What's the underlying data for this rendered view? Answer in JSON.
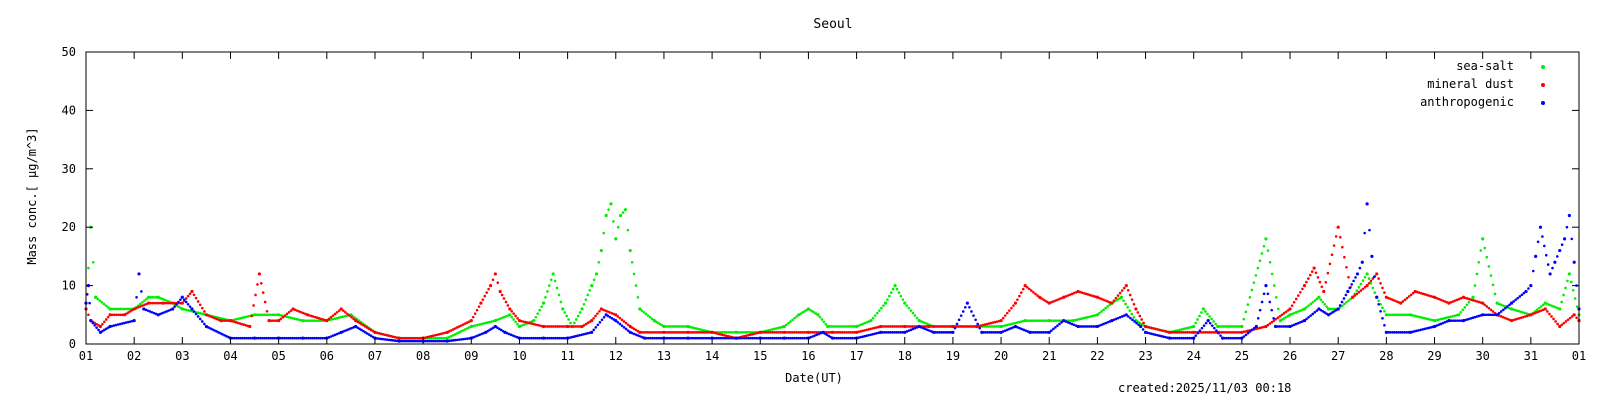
{
  "chart_data": {
    "type": "scatter",
    "title": "Seoul",
    "xlabel": "Date(UT)",
    "ylabel": "Mass conc.[ μg/m^3]",
    "footer": "created:2025/11/03 00:18",
    "xlim": [
      0,
      31
    ],
    "ylim": [
      0,
      50
    ],
    "yticks": [
      0,
      10,
      20,
      30,
      40,
      50
    ],
    "xtick_labels": [
      "01",
      "02",
      "03",
      "04",
      "05",
      "06",
      "07",
      "08",
      "09",
      "10",
      "11",
      "12",
      "13",
      "14",
      "15",
      "16",
      "17",
      "18",
      "19",
      "20",
      "21",
      "22",
      "23",
      "24",
      "25",
      "26",
      "27",
      "28",
      "29",
      "30",
      "31",
      "01"
    ],
    "grid": false,
    "legend_position": "top-right",
    "series": [
      {
        "name": "sea-salt",
        "color": "#00ee00",
        "points": [
          [
            0.0,
            6
          ],
          [
            0.1,
            20
          ],
          [
            0.2,
            8
          ],
          [
            0.5,
            6
          ],
          [
            1.0,
            6
          ],
          [
            1.3,
            8
          ],
          [
            1.5,
            8
          ],
          [
            1.8,
            7
          ],
          [
            2.0,
            6
          ],
          [
            2.5,
            5
          ],
          [
            3.0,
            4
          ],
          [
            3.5,
            5
          ],
          [
            4.0,
            5
          ],
          [
            4.5,
            4
          ],
          [
            5.0,
            4
          ],
          [
            5.5,
            5
          ],
          [
            6.0,
            2
          ],
          [
            6.5,
            1
          ],
          [
            7.0,
            1
          ],
          [
            7.5,
            1
          ],
          [
            8.0,
            3
          ],
          [
            8.5,
            4
          ],
          [
            8.8,
            5
          ],
          [
            9.0,
            3
          ],
          [
            9.3,
            4
          ],
          [
            9.5,
            7
          ],
          [
            9.7,
            12
          ],
          [
            9.9,
            6
          ],
          [
            10.1,
            3
          ],
          [
            10.3,
            6
          ],
          [
            10.5,
            10
          ],
          [
            10.6,
            12
          ],
          [
            10.7,
            16
          ],
          [
            10.8,
            22
          ],
          [
            10.9,
            24
          ],
          [
            11.0,
            18
          ],
          [
            11.1,
            22
          ],
          [
            11.2,
            23
          ],
          [
            11.3,
            16
          ],
          [
            11.5,
            6
          ],
          [
            11.8,
            4
          ],
          [
            12.0,
            3
          ],
          [
            12.5,
            3
          ],
          [
            13.0,
            2
          ],
          [
            13.5,
            2
          ],
          [
            14.0,
            2
          ],
          [
            14.5,
            3
          ],
          [
            14.8,
            5
          ],
          [
            15.0,
            6
          ],
          [
            15.2,
            5
          ],
          [
            15.4,
            3
          ],
          [
            16.0,
            3
          ],
          [
            16.3,
            4
          ],
          [
            16.6,
            7
          ],
          [
            16.8,
            10
          ],
          [
            17.0,
            7
          ],
          [
            17.3,
            4
          ],
          [
            17.6,
            3
          ],
          [
            18.0,
            3
          ],
          [
            18.5,
            3
          ],
          [
            19.0,
            3
          ],
          [
            19.5,
            4
          ],
          [
            20.0,
            4
          ],
          [
            20.5,
            4
          ],
          [
            21.0,
            5
          ],
          [
            21.3,
            7
          ],
          [
            21.5,
            8
          ],
          [
            21.8,
            4
          ],
          [
            22.0,
            3
          ],
          [
            22.5,
            2
          ],
          [
            23.0,
            3
          ],
          [
            23.2,
            6
          ],
          [
            23.5,
            3
          ],
          [
            24.0,
            3
          ],
          [
            24.5,
            18
          ],
          [
            24.8,
            4
          ],
          [
            25.0,
            5
          ],
          [
            25.3,
            6
          ],
          [
            25.6,
            8
          ],
          [
            25.8,
            6
          ],
          [
            26.0,
            6
          ],
          [
            26.3,
            8
          ],
          [
            26.6,
            12
          ],
          [
            26.8,
            8
          ],
          [
            27.0,
            5
          ],
          [
            27.5,
            5
          ],
          [
            28.0,
            4
          ],
          [
            28.5,
            5
          ],
          [
            28.8,
            8
          ],
          [
            29.0,
            18
          ],
          [
            29.3,
            7
          ],
          [
            29.6,
            6
          ],
          [
            30.0,
            5
          ],
          [
            30.3,
            7
          ],
          [
            30.6,
            6
          ],
          [
            30.8,
            12
          ],
          [
            31.0,
            5
          ]
        ]
      },
      {
        "name": "mineral dust",
        "color": "#ff0000",
        "points": [
          [
            0.0,
            6
          ],
          [
            0.1,
            4
          ],
          [
            0.3,
            3
          ],
          [
            0.5,
            5
          ],
          [
            0.8,
            5
          ],
          [
            1.0,
            6
          ],
          [
            1.3,
            7
          ],
          [
            1.6,
            7
          ],
          [
            2.0,
            7
          ],
          [
            2.2,
            9
          ],
          [
            2.5,
            5
          ],
          [
            2.8,
            4
          ],
          [
            3.0,
            4
          ],
          [
            3.4,
            3
          ],
          [
            3.6,
            12
          ],
          [
            3.8,
            4
          ],
          [
            4.0,
            4
          ],
          [
            4.3,
            6
          ],
          [
            4.6,
            5
          ],
          [
            5.0,
            4
          ],
          [
            5.3,
            6
          ],
          [
            5.6,
            4
          ],
          [
            6.0,
            2
          ],
          [
            6.5,
            1
          ],
          [
            7.0,
            1
          ],
          [
            7.5,
            2
          ],
          [
            8.0,
            4
          ],
          [
            8.2,
            7
          ],
          [
            8.4,
            10
          ],
          [
            8.5,
            12
          ],
          [
            8.6,
            9
          ],
          [
            8.8,
            6
          ],
          [
            9.0,
            4
          ],
          [
            9.5,
            3
          ],
          [
            10.0,
            3
          ],
          [
            10.3,
            3
          ],
          [
            10.5,
            4
          ],
          [
            10.7,
            6
          ],
          [
            11.0,
            5
          ],
          [
            11.3,
            3
          ],
          [
            11.5,
            2
          ],
          [
            12.0,
            2
          ],
          [
            12.5,
            2
          ],
          [
            13.0,
            2
          ],
          [
            13.5,
            1
          ],
          [
            14.0,
            2
          ],
          [
            14.5,
            2
          ],
          [
            15.0,
            2
          ],
          [
            15.5,
            2
          ],
          [
            16.0,
            2
          ],
          [
            16.5,
            3
          ],
          [
            17.0,
            3
          ],
          [
            17.5,
            3
          ],
          [
            18.0,
            3
          ],
          [
            18.5,
            3
          ],
          [
            19.0,
            4
          ],
          [
            19.3,
            7
          ],
          [
            19.5,
            10
          ],
          [
            19.8,
            8
          ],
          [
            20.0,
            7
          ],
          [
            20.3,
            8
          ],
          [
            20.6,
            9
          ],
          [
            21.0,
            8
          ],
          [
            21.3,
            7
          ],
          [
            21.6,
            10
          ],
          [
            21.8,
            6
          ],
          [
            22.0,
            3
          ],
          [
            22.5,
            2
          ],
          [
            23.0,
            2
          ],
          [
            23.5,
            2
          ],
          [
            24.0,
            2
          ],
          [
            24.5,
            3
          ],
          [
            25.0,
            6
          ],
          [
            25.3,
            10
          ],
          [
            25.5,
            13
          ],
          [
            25.7,
            9
          ],
          [
            26.0,
            20
          ],
          [
            26.3,
            8
          ],
          [
            26.6,
            10
          ],
          [
            26.8,
            12
          ],
          [
            27.0,
            8
          ],
          [
            27.3,
            7
          ],
          [
            27.6,
            9
          ],
          [
            28.0,
            8
          ],
          [
            28.3,
            7
          ],
          [
            28.6,
            8
          ],
          [
            29.0,
            7
          ],
          [
            29.3,
            5
          ],
          [
            29.6,
            4
          ],
          [
            30.0,
            5
          ],
          [
            30.3,
            6
          ],
          [
            30.6,
            3
          ],
          [
            30.9,
            5
          ],
          [
            31.0,
            4
          ]
        ]
      },
      {
        "name": "anthropogenic",
        "color": "#0000ff",
        "points": [
          [
            0.0,
            7
          ],
          [
            0.05,
            10
          ],
          [
            0.1,
            4
          ],
          [
            0.3,
            2
          ],
          [
            0.5,
            3
          ],
          [
            1.0,
            4
          ],
          [
            1.1,
            12
          ],
          [
            1.2,
            6
          ],
          [
            1.5,
            5
          ],
          [
            1.8,
            6
          ],
          [
            2.0,
            8
          ],
          [
            2.2,
            6
          ],
          [
            2.5,
            3
          ],
          [
            3.0,
            1
          ],
          [
            3.5,
            1
          ],
          [
            4.0,
            1
          ],
          [
            4.5,
            1
          ],
          [
            5.0,
            1
          ],
          [
            5.3,
            2
          ],
          [
            5.6,
            3
          ],
          [
            6.0,
            1
          ],
          [
            6.5,
            0.5
          ],
          [
            7.0,
            0.5
          ],
          [
            7.5,
            0.5
          ],
          [
            8.0,
            1
          ],
          [
            8.3,
            2
          ],
          [
            8.5,
            3
          ],
          [
            8.7,
            2
          ],
          [
            9.0,
            1
          ],
          [
            9.5,
            1
          ],
          [
            10.0,
            1
          ],
          [
            10.5,
            2
          ],
          [
            10.8,
            5
          ],
          [
            11.0,
            4
          ],
          [
            11.3,
            2
          ],
          [
            11.6,
            1
          ],
          [
            12.0,
            1
          ],
          [
            12.5,
            1
          ],
          [
            13.0,
            1
          ],
          [
            13.5,
            1
          ],
          [
            14.0,
            1
          ],
          [
            14.5,
            1
          ],
          [
            15.0,
            1
          ],
          [
            15.3,
            2
          ],
          [
            15.5,
            1
          ],
          [
            16.0,
            1
          ],
          [
            16.5,
            2
          ],
          [
            17.0,
            2
          ],
          [
            17.3,
            3
          ],
          [
            17.6,
            2
          ],
          [
            18.0,
            2
          ],
          [
            18.3,
            7
          ],
          [
            18.6,
            2
          ],
          [
            19.0,
            2
          ],
          [
            19.3,
            3
          ],
          [
            19.6,
            2
          ],
          [
            20.0,
            2
          ],
          [
            20.3,
            4
          ],
          [
            20.6,
            3
          ],
          [
            21.0,
            3
          ],
          [
            21.3,
            4
          ],
          [
            21.6,
            5
          ],
          [
            21.9,
            3
          ],
          [
            22.0,
            2
          ],
          [
            22.5,
            1
          ],
          [
            23.0,
            1
          ],
          [
            23.3,
            4
          ],
          [
            23.6,
            1
          ],
          [
            24.0,
            1
          ],
          [
            24.3,
            3
          ],
          [
            24.5,
            10
          ],
          [
            24.7,
            3
          ],
          [
            25.0,
            3
          ],
          [
            25.3,
            4
          ],
          [
            25.6,
            6
          ],
          [
            25.8,
            5
          ],
          [
            26.0,
            6
          ],
          [
            26.2,
            9
          ],
          [
            26.4,
            12
          ],
          [
            26.5,
            14
          ],
          [
            26.6,
            24
          ],
          [
            26.7,
            15
          ],
          [
            26.8,
            8
          ],
          [
            27.0,
            2
          ],
          [
            27.5,
            2
          ],
          [
            28.0,
            3
          ],
          [
            28.3,
            4
          ],
          [
            28.6,
            4
          ],
          [
            29.0,
            5
          ],
          [
            29.3,
            5
          ],
          [
            29.6,
            7
          ],
          [
            29.9,
            9
          ],
          [
            30.0,
            10
          ],
          [
            30.1,
            15
          ],
          [
            30.2,
            20
          ],
          [
            30.4,
            12
          ],
          [
            30.5,
            14
          ],
          [
            30.6,
            16
          ],
          [
            30.7,
            18
          ],
          [
            30.8,
            22
          ],
          [
            30.9,
            14
          ],
          [
            31.0,
            6
          ]
        ]
      }
    ]
  }
}
